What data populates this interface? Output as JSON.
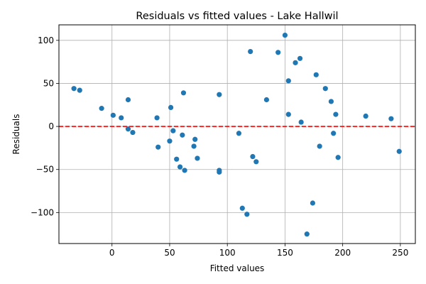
{
  "chart_data": {
    "type": "scatter",
    "title": "Residuals vs fitted values - Lake Hallwil",
    "xlabel": "Fitted values",
    "ylabel": "Residuals",
    "xlim": [
      -46,
      263
    ],
    "ylim": [
      -136,
      118
    ],
    "xticks": [
      0,
      50,
      100,
      150,
      200,
      250
    ],
    "yticks": [
      -100,
      -50,
      0,
      50,
      100
    ],
    "ytick_labels": [
      "−100",
      "−50",
      "0",
      "50",
      "100"
    ],
    "grid": true,
    "reference_line": {
      "y": 0,
      "color": "#ff0000",
      "style": "dashed"
    },
    "point_color": "#1f77b4",
    "points": [
      {
        "x": -33,
        "y": 44
      },
      {
        "x": -28,
        "y": 42
      },
      {
        "x": -9,
        "y": 21
      },
      {
        "x": 1,
        "y": 13
      },
      {
        "x": 8,
        "y": 10
      },
      {
        "x": 14,
        "y": 31
      },
      {
        "x": 14,
        "y": -3
      },
      {
        "x": 18,
        "y": -7
      },
      {
        "x": 39,
        "y": 10
      },
      {
        "x": 40,
        "y": -24
      },
      {
        "x": 50,
        "y": -17
      },
      {
        "x": 51,
        "y": 22
      },
      {
        "x": 53,
        "y": -5
      },
      {
        "x": 56,
        "y": -38
      },
      {
        "x": 59,
        "y": -47
      },
      {
        "x": 61,
        "y": -10
      },
      {
        "x": 62,
        "y": 39
      },
      {
        "x": 63,
        "y": -51
      },
      {
        "x": 71,
        "y": -23
      },
      {
        "x": 72,
        "y": -15
      },
      {
        "x": 74,
        "y": -37
      },
      {
        "x": 93,
        "y": -51
      },
      {
        "x": 93,
        "y": -53
      },
      {
        "x": 93,
        "y": 37
      },
      {
        "x": 110,
        "y": -8
      },
      {
        "x": 113,
        "y": -95
      },
      {
        "x": 117,
        "y": -102
      },
      {
        "x": 120,
        "y": 87
      },
      {
        "x": 122,
        "y": -35
      },
      {
        "x": 125,
        "y": -41
      },
      {
        "x": 134,
        "y": 31
      },
      {
        "x": 144,
        "y": 86
      },
      {
        "x": 150,
        "y": 106
      },
      {
        "x": 153,
        "y": 53
      },
      {
        "x": 153,
        "y": 14
      },
      {
        "x": 159,
        "y": 74
      },
      {
        "x": 163,
        "y": 79
      },
      {
        "x": 164,
        "y": 5
      },
      {
        "x": 169,
        "y": -125
      },
      {
        "x": 174,
        "y": -89
      },
      {
        "x": 177,
        "y": 60
      },
      {
        "x": 180,
        "y": -23
      },
      {
        "x": 185,
        "y": 44
      },
      {
        "x": 190,
        "y": 29
      },
      {
        "x": 192,
        "y": -8
      },
      {
        "x": 194,
        "y": 14
      },
      {
        "x": 196,
        "y": -36
      },
      {
        "x": 220,
        "y": 12
      },
      {
        "x": 242,
        "y": 9
      },
      {
        "x": 249,
        "y": -29
      }
    ]
  }
}
